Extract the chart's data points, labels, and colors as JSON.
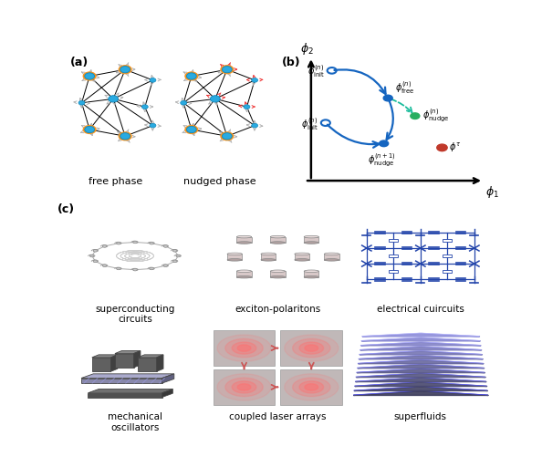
{
  "fig_width": 5.94,
  "fig_height": 5.02,
  "panel_a_label": "(a)",
  "panel_b_label": "(b)",
  "panel_c_label": "(c)",
  "free_phase_label": "free phase",
  "nudged_phase_label": "nudged phase",
  "phi1_label": "$\\phi_1$",
  "phi2_label": "$\\phi_2$",
  "phi_init_n_upper": "$\\phi^{(n)}_{\\mathrm{init}}$",
  "phi_free_n": "$\\phi^{(n)}_{\\mathrm{free}}$",
  "phi_nudge_n": "$\\phi^{(n)}_{\\mathrm{nudge}}$",
  "phi_init_n_lower": "$\\phi^{(n)}_{\\mathrm{init}}$",
  "phi_nudge_n1": "$\\phi^{(n+1)}_{\\mathrm{nudge}}$",
  "phi_tau": "$\\phi^{\\tau}$",
  "subc_labels": [
    "superconducting\ncircuits",
    "exciton-polaritons",
    "electrical cuircuits",
    "mechanical\noscillators",
    "coupled laser arrays",
    "superfluids"
  ],
  "node_color_inner": "#29AAE1",
  "node_color_outer": "#F7941E",
  "edge_color": "#000000",
  "blue_dark": "#1565C0",
  "green_dot": "#27AE60",
  "red_dot": "#C0392B",
  "teal_arrow": "#1ABC9C",
  "background_color": "#FFFFFF"
}
